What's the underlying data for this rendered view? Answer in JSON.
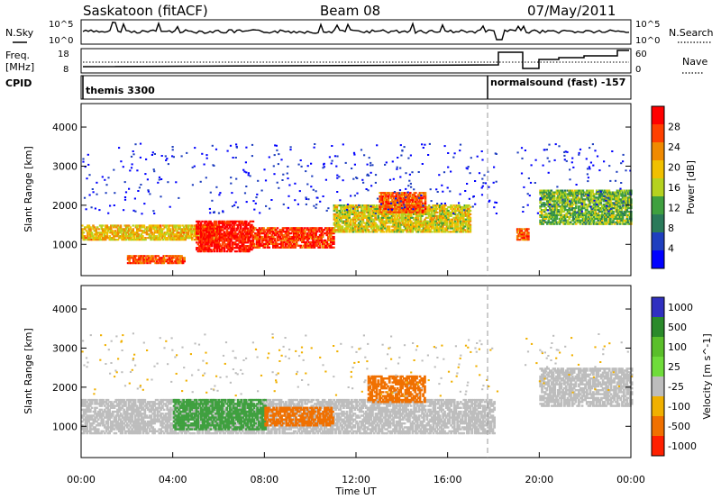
{
  "header": {
    "station": "Saskatoon (fitACF)",
    "beam": "Beam 08",
    "date": "07/May/2011"
  },
  "colors": {
    "power_scale": [
      "#0000ff",
      "#1f3fbf",
      "#2a7a5a",
      "#3fa03f",
      "#b5d21f",
      "#f0c000",
      "#f08a00",
      "#ff4000",
      "#ff0000"
    ],
    "velocity_scale": [
      "#3030c0",
      "#2a8a2a",
      "#5abf2a",
      "#6fdc3a",
      "#bdbdbd",
      "#f0b000",
      "#f07000",
      "#ff2000"
    ]
  },
  "top_panels": {
    "nsky": {
      "label": "N.Sky",
      "yticks_left": [
        "10^5",
        "10^0"
      ],
      "yticks_right": [
        "10^5",
        "10^0"
      ],
      "right_label": "N.Search"
    },
    "freq": {
      "label_line1": "Freq.",
      "label_line2": "[MHz]",
      "yticks_left": [
        "18",
        "8"
      ],
      "yticks_right": [
        "60",
        "0"
      ],
      "right_label": "Nave"
    },
    "cpid": {
      "label": "CPID",
      "segments": [
        {
          "label": "themis 3300",
          "start": 0,
          "end": 18.1
        },
        {
          "label": "normalsound (fast) -157",
          "start": 18.1,
          "end": 24
        }
      ]
    }
  },
  "chart_data": [
    {
      "type": "heatmap",
      "title": "",
      "xlabel": "",
      "ylabel": "Slant Range [km]",
      "xlim": [
        0,
        24
      ],
      "ylim": [
        200,
        4600
      ],
      "yticks": [
        1000,
        2000,
        3000,
        4000
      ],
      "colorbar": {
        "label": "Power [dB]",
        "range": [
          0,
          32
        ],
        "ticks": [
          4,
          8,
          12,
          16,
          20,
          24,
          28
        ]
      },
      "features": [
        {
          "t0": 0.0,
          "t1": 6.0,
          "r0": 1100,
          "r1": 1500,
          "power": 20
        },
        {
          "t0": 2.0,
          "t1": 4.5,
          "r0": 500,
          "r1": 700,
          "power": 26
        },
        {
          "t0": 5.0,
          "t1": 7.5,
          "r0": 800,
          "r1": 1600,
          "power": 30
        },
        {
          "t0": 7.5,
          "t1": 11.0,
          "r0": 900,
          "r1": 1400,
          "power": 28
        },
        {
          "t0": 11.0,
          "t1": 17.0,
          "r0": 1300,
          "r1": 2000,
          "power": 18
        },
        {
          "t0": 13.0,
          "t1": 15.0,
          "r0": 1800,
          "r1": 2300,
          "power": 26
        },
        {
          "t0": 19.0,
          "t1": 19.5,
          "r0": 1100,
          "r1": 1400,
          "power": 26
        },
        {
          "t0": 20.0,
          "t1": 24.0,
          "r0": 1500,
          "r1": 2400,
          "power": 14
        }
      ]
    },
    {
      "type": "heatmap",
      "title": "",
      "xlabel": "Time UT",
      "ylabel": "Slant Range [km]",
      "xlim": [
        0,
        24
      ],
      "ylim": [
        200,
        4600
      ],
      "yticks": [
        1000,
        2000,
        3000,
        4000
      ],
      "xticks": [
        "00:00",
        "04:00",
        "08:00",
        "12:00",
        "16:00",
        "20:00",
        "00:00"
      ],
      "colorbar": {
        "label": "Velocity [m s^-1]",
        "tick_labels": [
          "1000",
          "500",
          "100",
          "25",
          "-25",
          "-100",
          "-500",
          "-1000"
        ]
      },
      "features": [
        {
          "t0": 0.0,
          "t1": 18.0,
          "r0": 800,
          "r1": 1700,
          "velocity_class": "gray"
        },
        {
          "t0": 4.0,
          "t1": 8.0,
          "r0": 900,
          "r1": 1700,
          "velocity_class": "green"
        },
        {
          "t0": 8.0,
          "t1": 11.0,
          "r0": 1000,
          "r1": 1500,
          "velocity_class": "orange"
        },
        {
          "t0": 12.5,
          "t1": 15.0,
          "r0": 1600,
          "r1": 2300,
          "velocity_class": "orange"
        },
        {
          "t0": 20.0,
          "t1": 24.0,
          "r0": 1500,
          "r1": 2500,
          "velocity_class": "gray"
        }
      ]
    }
  ]
}
